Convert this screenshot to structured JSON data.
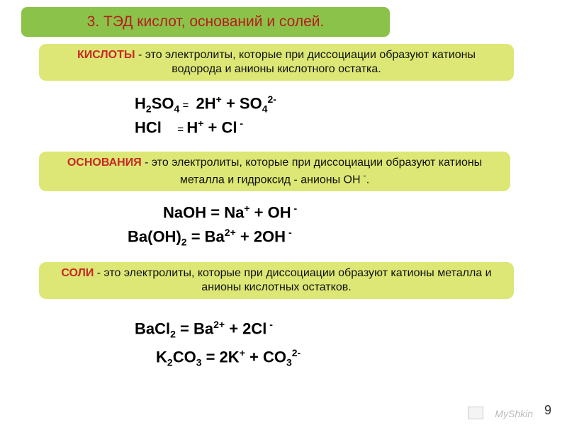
{
  "title": "3. ТЭД кислот, оснований и солей.",
  "defs": {
    "acids_hl": "КИСЛОТЫ",
    "acids_txt": " - это электролиты, которые при диссоциации образуют  катионы водорода и анионы кислотного остатка.",
    "bases_hl": "ОСНОВАНИЯ",
    "bases_txt_a": " - это электролиты, которые при диссоциации образуют  катионы металла и гидроксид - анионы ОН",
    "bases_txt_b": ".",
    "salts_hl": "СОЛИ",
    "salts_txt": " - это электролиты, которые при диссоциации образуют катионы металла  и анионы кислотных остатков."
  },
  "eq": {
    "e1": {
      "a": "H",
      "b": "2",
      "c": "SO",
      "d": "4",
      "eq": " = ",
      "e": "2H",
      "f": "+",
      "g": " + SO",
      "h": "4",
      "i": "2-"
    },
    "e2": {
      "a": "HCl ",
      "eq": " = ",
      "b": "   H",
      "c": "+",
      "d": " + Cl",
      "e": " -"
    },
    "e3": {
      "a": "NaOH = Na",
      "b": "+",
      "c": " + OH",
      "d": " -"
    },
    "e4": {
      "a": "Ba(OH)",
      "b": "2",
      "c": " =  Ba",
      "d": "2+",
      "e": " + 2OH",
      "f": " -"
    },
    "e5": {
      "a": "BaCl",
      "b": "2",
      "c": " = Ba",
      "d": "2+",
      "e": " + 2Cl",
      "f": " -"
    },
    "e6": {
      "a": "K",
      "b": "2",
      "c": "CO",
      "d": "3",
      "e": " = 2K",
      "f": "+",
      "g": " + CO",
      "h": "3",
      "i": "2-"
    }
  },
  "footer": {
    "page": "9",
    "wm": "MyShkin"
  },
  "colors": {
    "title_bg": "#8bc34a",
    "title_fg": "#b71c1c",
    "def_bg": "#dce775",
    "hl": "#c62828",
    "text": "#000000",
    "bg": "#ffffff"
  }
}
